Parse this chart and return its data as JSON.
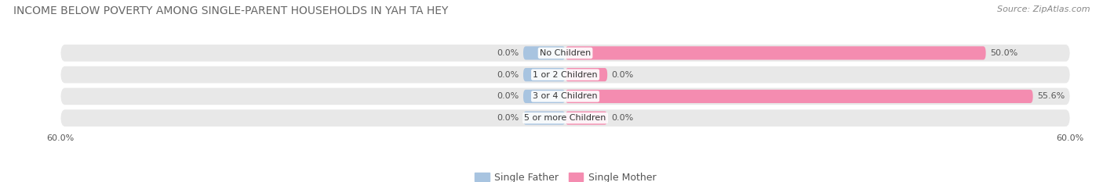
{
  "title": "INCOME BELOW POVERTY AMONG SINGLE-PARENT HOUSEHOLDS IN YAH TA HEY",
  "source": "Source: ZipAtlas.com",
  "categories": [
    "No Children",
    "1 or 2 Children",
    "3 or 4 Children",
    "5 or more Children"
  ],
  "single_father": [
    0.0,
    0.0,
    0.0,
    0.0
  ],
  "single_mother": [
    50.0,
    0.0,
    55.6,
    0.0
  ],
  "father_color": "#a8c4e0",
  "mother_color": "#f48cb0",
  "background_bar_color": "#e8e8e8",
  "xlim_left": -60.0,
  "xlim_right": 60.0,
  "axis_tick_labels": [
    "60.0%",
    "60.0%"
  ],
  "title_fontsize": 10,
  "source_fontsize": 8,
  "label_fontsize": 8,
  "category_fontsize": 8,
  "legend_fontsize": 9,
  "bar_height": 0.62,
  "fig_width": 14.06,
  "fig_height": 2.33,
  "father_stub": 5.0,
  "mother_stub": 5.0
}
